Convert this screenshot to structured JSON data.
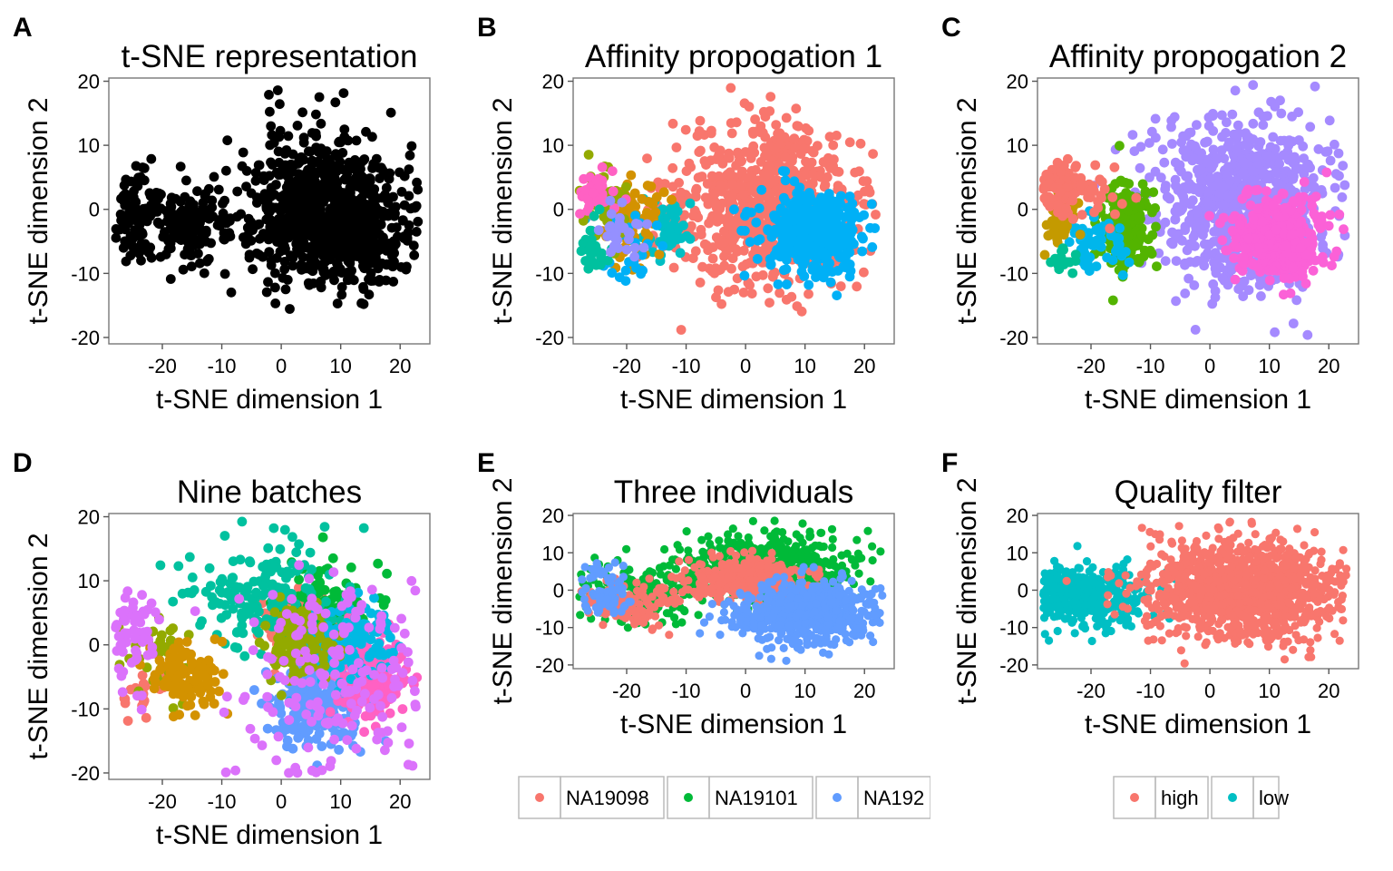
{
  "chart_data": [
    {
      "id": "A",
      "panel_letter": "A",
      "type": "scatter",
      "coloring": "none",
      "title": "t-SNE representation",
      "xlabel": "t-SNE dimension 1",
      "ylabel": "t-SNE dimension 2",
      "xlim": [
        -29,
        25
      ],
      "ylim": [
        -21,
        20.5
      ],
      "xticks": [
        -20,
        -10,
        0,
        10,
        20
      ],
      "yticks": [
        -20,
        -10,
        0,
        10,
        20
      ],
      "grid": false,
      "series": [
        {
          "color": "#000000",
          "clusters": [
            {
              "cx": 6,
              "cy": 0,
              "sx": 6.5,
              "sy": 6,
              "n": 650
            },
            {
              "cx": -15,
              "cy": -3,
              "sx": 4,
              "sy": 3.5,
              "n": 150
            },
            {
              "cx": -24.5,
              "cy": -1,
              "sx": 1.8,
              "sy": 4.2,
              "n": 90
            },
            {
              "cx": 12,
              "cy": -4,
              "sx": 5,
              "sy": 3.5,
              "n": 250
            }
          ]
        }
      ]
    },
    {
      "id": "B",
      "panel_letter": "B",
      "type": "scatter",
      "coloring": "cluster",
      "title": "Affinity propogation 1",
      "xlabel": "t-SNE dimension 1",
      "ylabel": "t-SNE dimension 2",
      "xlim": [
        -29,
        25
      ],
      "ylim": [
        -21,
        20.5
      ],
      "xticks": [
        -20,
        -10,
        0,
        10,
        20
      ],
      "yticks": [
        -20,
        -10,
        0,
        10,
        20
      ],
      "grid": false,
      "series": [
        {
          "color": "#F8766D",
          "clusters": [
            {
              "cx": 4,
              "cy": 1.5,
              "sx": 7,
              "sy": 6.5,
              "n": 700
            },
            {
              "cx": -13,
              "cy": -1,
              "sx": 3,
              "sy": 3,
              "n": 40
            }
          ]
        },
        {
          "color": "#00BFC4",
          "clusters": [
            {
              "cx": -13,
              "cy": -3,
              "sx": 2,
              "sy": 2.2,
              "n": 60
            }
          ]
        },
        {
          "color": "#D39200",
          "clusters": [
            {
              "cx": -19,
              "cy": -1.5,
              "sx": 2.5,
              "sy": 3,
              "n": 80
            }
          ]
        },
        {
          "color": "#00B0F6",
          "clusters": [
            {
              "cx": 11,
              "cy": -4,
              "sx": 4,
              "sy": 3,
              "n": 450
            },
            {
              "cx": -20,
              "cy": -5,
              "sx": 3,
              "sy": 3,
              "n": 30
            }
          ]
        },
        {
          "color": "#93AA00",
          "clusters": [
            {
              "cx": -23.5,
              "cy": 1.5,
              "sx": 2,
              "sy": 3,
              "n": 50
            }
          ]
        },
        {
          "color": "#FF61C3",
          "clusters": [
            {
              "cx": -25.5,
              "cy": 3,
              "sx": 1.5,
              "sy": 2,
              "n": 40
            }
          ]
        },
        {
          "color": "#00C19F",
          "clusters": [
            {
              "cx": -25,
              "cy": -6,
              "sx": 1.5,
              "sy": 2,
              "n": 30
            }
          ]
        },
        {
          "color": "#9590FF",
          "clusters": [
            {
              "cx": -21,
              "cy": -3,
              "sx": 2,
              "sy": 2.5,
              "n": 30
            }
          ]
        }
      ]
    },
    {
      "id": "C",
      "panel_letter": "C",
      "type": "scatter",
      "coloring": "cluster",
      "title": "Affinity propogation 2",
      "xlabel": "t-SNE dimension 1",
      "ylabel": "t-SNE dimension 2",
      "xlim": [
        -29,
        25
      ],
      "ylim": [
        -21,
        20.5
      ],
      "xticks": [
        -20,
        -10,
        0,
        10,
        20
      ],
      "yticks": [
        -20,
        -10,
        0,
        10,
        20
      ],
      "grid": false,
      "series": [
        {
          "color": "#A58AFF",
          "clusters": [
            {
              "cx": 5,
              "cy": 1,
              "sx": 7.5,
              "sy": 7,
              "n": 750
            }
          ]
        },
        {
          "color": "#FB61D7",
          "clusters": [
            {
              "cx": 11,
              "cy": -4,
              "sx": 4,
              "sy": 3,
              "n": 380
            }
          ]
        },
        {
          "color": "#53B400",
          "clusters": [
            {
              "cx": -14,
              "cy": -2.5,
              "sx": 2,
              "sy": 3.5,
              "n": 170
            }
          ]
        },
        {
          "color": "#00B6EB",
          "clusters": [
            {
              "cx": -19.5,
              "cy": -5,
              "sx": 2.5,
              "sy": 2.2,
              "n": 60
            }
          ]
        },
        {
          "color": "#C49A00",
          "clusters": [
            {
              "cx": -24.5,
              "cy": -2,
              "sx": 1.5,
              "sy": 2,
              "n": 50
            }
          ]
        },
        {
          "color": "#F8766D",
          "clusters": [
            {
              "cx": -25.5,
              "cy": 3.5,
              "sx": 2,
              "sy": 2,
              "n": 90
            },
            {
              "cx": -19,
              "cy": 2,
              "sx": 2.5,
              "sy": 3,
              "n": 30
            }
          ]
        },
        {
          "color": "#00C094",
          "clusters": [
            {
              "cx": -24.5,
              "cy": -8,
              "sx": 1.2,
              "sy": 1,
              "n": 20
            }
          ]
        }
      ]
    },
    {
      "id": "D",
      "panel_letter": "D",
      "type": "scatter",
      "coloring": "batch",
      "title": "Nine batches",
      "xlabel": "t-SNE dimension 1",
      "ylabel": "t-SNE dimension 2",
      "xlim": [
        -29,
        25
      ],
      "ylim": [
        -21,
        20.5
      ],
      "xticks": [
        -20,
        -10,
        0,
        10,
        20
      ],
      "yticks": [
        -20,
        -10,
        0,
        10,
        20
      ],
      "grid": false,
      "series": [
        {
          "color": "#F8766D",
          "clusters": [
            {
              "cx": 3,
              "cy": 3,
              "sx": 3,
              "sy": 2.5,
              "n": 120
            },
            {
              "cx": -24,
              "cy": -7,
              "sx": 2,
              "sy": 2,
              "n": 20
            }
          ]
        },
        {
          "color": "#00BA38",
          "clusters": [
            {
              "cx": 8,
              "cy": 4,
              "sx": 4,
              "sy": 4,
              "n": 160
            }
          ]
        },
        {
          "color": "#00C19F",
          "clusters": [
            {
              "cx": -3,
              "cy": 8,
              "sx": 6,
              "sy": 4,
              "n": 170
            }
          ]
        },
        {
          "color": "#619CFF",
          "clusters": [
            {
              "cx": 6,
              "cy": -9,
              "sx": 4,
              "sy": 4,
              "n": 220
            }
          ]
        },
        {
          "color": "#FF61C3",
          "clusters": [
            {
              "cx": 15,
              "cy": -5,
              "sx": 3,
              "sy": 3,
              "n": 220
            }
          ]
        },
        {
          "color": "#00B9E3",
          "clusters": [
            {
              "cx": 10,
              "cy": 0,
              "sx": 4,
              "sy": 3,
              "n": 170
            }
          ]
        },
        {
          "color": "#93AA00",
          "clusters": [
            {
              "cx": 3,
              "cy": 0,
              "sx": 3,
              "sy": 3,
              "n": 120
            },
            {
              "cx": -20,
              "cy": -1,
              "sx": 3,
              "sy": 3,
              "n": 40
            }
          ]
        },
        {
          "color": "#D39200",
          "clusters": [
            {
              "cx": -15,
              "cy": -5,
              "sx": 3,
              "sy": 2.5,
              "n": 120
            }
          ]
        },
        {
          "color": "#DB72FB",
          "clusters": [
            {
              "cx": -25,
              "cy": 1,
              "sx": 2,
              "sy": 3.5,
              "n": 60
            },
            {
              "cx": 10,
              "cy": -4,
              "sx": 9,
              "sy": 8,
              "n": 180
            }
          ]
        }
      ]
    },
    {
      "id": "E",
      "panel_letter": "E",
      "type": "scatter",
      "coloring": "individual",
      "title": "Three individuals",
      "xlabel": "t-SNE dimension 1",
      "ylabel": "t-SNE dimension 2",
      "xlim": [
        -29,
        25
      ],
      "ylim": [
        -21,
        20.5
      ],
      "xticks": [
        -20,
        -10,
        0,
        10,
        20
      ],
      "yticks": [
        -20,
        -10,
        0,
        10,
        20
      ],
      "grid": false,
      "legend": {
        "position": "bottom",
        "entries": [
          {
            "label": "NA19098",
            "color": "#F8766D"
          },
          {
            "label": "NA19101",
            "color": "#00BA38"
          },
          {
            "label": "NA192",
            "color": "#619CFF"
          }
        ]
      },
      "series": [
        {
          "name": "NA19101",
          "color": "#00BA38",
          "clusters": [
            {
              "cx": 3,
              "cy": 6,
              "sx": 8,
              "sy": 4.5,
              "n": 550
            },
            {
              "cx": -18,
              "cy": -1,
              "sx": 5,
              "sy": 4,
              "n": 180
            }
          ]
        },
        {
          "name": "NA19098",
          "color": "#F8766D",
          "clusters": [
            {
              "cx": 0,
              "cy": 3,
              "sx": 6,
              "sy": 3,
              "n": 320
            },
            {
              "cx": -20,
              "cy": -4,
              "sx": 4,
              "sy": 3,
              "n": 120
            }
          ]
        },
        {
          "name": "NA192",
          "color": "#619CFF",
          "clusters": [
            {
              "cx": 10,
              "cy": -6,
              "sx": 6,
              "sy": 4,
              "n": 650
            },
            {
              "cx": -24,
              "cy": 0,
              "sx": 2,
              "sy": 4,
              "n": 70
            }
          ]
        }
      ]
    },
    {
      "id": "F",
      "panel_letter": "F",
      "type": "scatter",
      "coloring": "quality",
      "title": "Quality filter",
      "xlabel": "t-SNE dimension 1",
      "ylabel": "t-SNE dimension 2",
      "xlim": [
        -29,
        25
      ],
      "ylim": [
        -21,
        20.5
      ],
      "xticks": [
        -20,
        -10,
        0,
        10,
        20
      ],
      "yticks": [
        -20,
        -10,
        0,
        10,
        20
      ],
      "grid": false,
      "legend": {
        "position": "bottom",
        "entries": [
          {
            "label": "high",
            "color": "#F8766D"
          },
          {
            "label": "low",
            "color": "#00BFC4"
          }
        ]
      },
      "series": [
        {
          "name": "low",
          "color": "#00BFC4",
          "clusters": [
            {
              "cx": -20,
              "cy": -2,
              "sx": 5,
              "sy": 4,
              "n": 320
            },
            {
              "cx": -26,
              "cy": 2,
              "sx": 1.5,
              "sy": 3,
              "n": 60
            }
          ]
        },
        {
          "name": "high",
          "color": "#F8766D",
          "clusters": [
            {
              "cx": 5,
              "cy": 0,
              "sx": 8,
              "sy": 6.5,
              "n": 1100
            }
          ]
        }
      ]
    }
  ]
}
